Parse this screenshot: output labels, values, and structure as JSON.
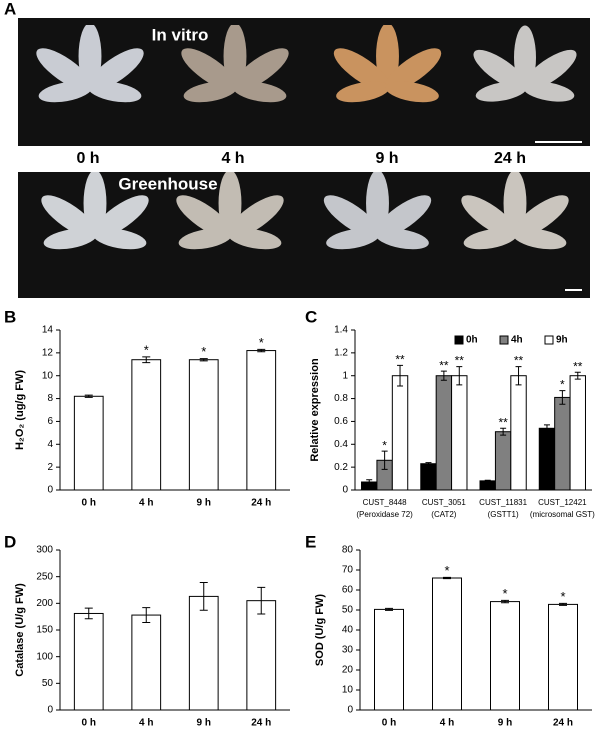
{
  "panel_a": {
    "letter": "A",
    "top_label": "In vitro",
    "bottom_label": "Greenhouse",
    "times": [
      "0 h",
      "4 h",
      "9 h",
      "24 h"
    ]
  },
  "chart_data": [
    {
      "type": "bar",
      "panel": "B",
      "ylabel": "H₂O₂ (ug/g FW)",
      "categories": [
        "0 h",
        "4 h",
        "9 h",
        "24 h"
      ],
      "values": [
        8.2,
        11.4,
        11.4,
        12.2
      ],
      "errors": [
        0.1,
        0.25,
        0.1,
        0.1
      ],
      "significance": [
        null,
        "*",
        "*",
        "*"
      ],
      "color": "#ffffff",
      "ylim": [
        0,
        14
      ],
      "yticks": [
        0,
        2,
        4,
        6,
        8,
        10,
        12,
        14
      ]
    },
    {
      "type": "bar",
      "panel": "C",
      "ylabel": "Relative expression",
      "categories": [
        "CUST_8448",
        "CUST_3051",
        "CUST_11831",
        "CUST_12421"
      ],
      "category_notes": [
        "(Peroxidase 72)",
        "(CAT2)",
        "(GSTT1)",
        "(microsomal GST)"
      ],
      "series": [
        {
          "name": "0h",
          "color": "#000000",
          "values": [
            0.07,
            0.23,
            0.08,
            0.54
          ],
          "errors": [
            0.02,
            0.01,
            0.005,
            0.03
          ],
          "significance": [
            null,
            null,
            null,
            null
          ]
        },
        {
          "name": "4h",
          "color": "#808080",
          "values": [
            0.26,
            1.0,
            0.51,
            0.81
          ],
          "errors": [
            0.08,
            0.04,
            0.03,
            0.06
          ],
          "significance": [
            "*",
            "**",
            "**",
            "*"
          ]
        },
        {
          "name": "9h",
          "color": "#ffffff",
          "values": [
            1.0,
            1.0,
            1.0,
            1.0
          ],
          "errors": [
            0.09,
            0.08,
            0.08,
            0.03
          ],
          "significance": [
            "**",
            "**",
            "**",
            "**"
          ]
        }
      ],
      "ylim": [
        0,
        1.4
      ],
      "yticks": [
        0,
        0.2,
        0.4,
        0.6,
        0.8,
        1,
        1.2,
        1.4
      ],
      "legend": "top"
    },
    {
      "type": "bar",
      "panel": "D",
      "ylabel": "Catalase (U/g FW)",
      "categories": [
        "0 h",
        "4 h",
        "9 h",
        "24 h"
      ],
      "values": [
        181,
        178,
        213,
        205
      ],
      "errors": [
        10,
        14,
        26,
        25
      ],
      "significance": [
        null,
        null,
        null,
        null
      ],
      "color": "#ffffff",
      "ylim": [
        0,
        300
      ],
      "yticks": [
        0,
        50,
        100,
        150,
        200,
        250,
        300
      ]
    },
    {
      "type": "bar",
      "panel": "E",
      "ylabel": "SOD (U/g FW)",
      "categories": [
        "0 h",
        "4 h",
        "9 h",
        "24 h"
      ],
      "values": [
        50.3,
        66,
        54.2,
        52.8
      ],
      "errors": [
        0.5,
        0.3,
        0.6,
        0.5
      ],
      "significance": [
        null,
        "*",
        "*",
        "*"
      ],
      "color": "#ffffff",
      "ylim": [
        0,
        80
      ],
      "yticks": [
        0,
        10,
        20,
        30,
        40,
        50,
        60,
        70,
        80
      ]
    }
  ]
}
